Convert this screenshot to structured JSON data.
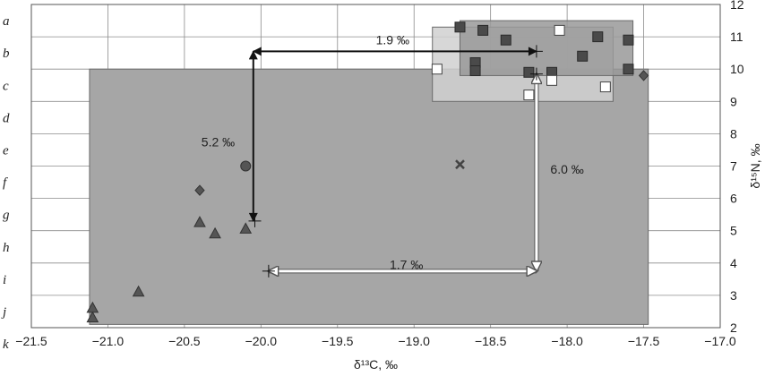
{
  "chart_data": {
    "type": "scatter",
    "title": "",
    "xlabel": "δ¹³C, ‰",
    "ylabel": "δ¹⁵N, ‰",
    "xlim": [
      -21.5,
      -17.0
    ],
    "ylim": [
      2,
      12
    ],
    "xticks": [
      "−21.5",
      "−21.0",
      "−20.5",
      "−20.0",
      "−19.5",
      "−19.0",
      "−18.5",
      "−18.0",
      "−17.5",
      "−17.0"
    ],
    "yticks": [
      "2",
      "3",
      "4",
      "5",
      "6",
      "7",
      "8",
      "9",
      "10",
      "11",
      "12"
    ],
    "grid": true,
    "row_labels": [
      "a",
      "b",
      "c",
      "d",
      "e",
      "f",
      "g",
      "h",
      "i",
      "j",
      "k"
    ],
    "ranges": [
      {
        "x": [
          -21.12,
          -17.47
        ],
        "y": [
          2.1,
          10.0
        ],
        "color": "#a6a6a6"
      },
      {
        "x": [
          -18.88,
          -17.7
        ],
        "y": [
          9.0,
          11.3
        ],
        "color": "#d0d0d0"
      },
      {
        "x": [
          -18.7,
          -17.57
        ],
        "y": [
          9.8,
          11.5
        ],
        "color": "#999999"
      }
    ],
    "series": [
      {
        "marker": "square-dark",
        "points": [
          [
            -18.7,
            11.3
          ],
          [
            -18.55,
            11.2
          ],
          [
            -18.4,
            10.9
          ],
          [
            -18.6,
            10.2
          ],
          [
            -18.6,
            9.95
          ],
          [
            -18.25,
            9.9
          ],
          [
            -18.1,
            9.9
          ],
          [
            -17.9,
            10.4
          ],
          [
            -17.8,
            11.0
          ],
          [
            -17.6,
            10.9
          ],
          [
            -17.6,
            10.0
          ]
        ]
      },
      {
        "marker": "square-open",
        "points": [
          [
            -18.85,
            10.0
          ],
          [
            -18.25,
            9.2
          ],
          [
            -18.1,
            9.65
          ],
          [
            -18.05,
            11.2
          ],
          [
            -17.75,
            9.45
          ]
        ]
      },
      {
        "marker": "triangle",
        "points": [
          [
            -21.1,
            2.6
          ],
          [
            -21.1,
            2.3
          ],
          [
            -20.8,
            3.1
          ],
          [
            -20.4,
            5.25
          ],
          [
            -20.3,
            4.9
          ],
          [
            -20.1,
            5.05
          ]
        ]
      },
      {
        "marker": "diamond",
        "points": [
          [
            -20.4,
            6.25
          ],
          [
            -17.5,
            9.8
          ]
        ]
      },
      {
        "marker": "circle",
        "points": [
          [
            -20.1,
            7.0
          ]
        ]
      },
      {
        "marker": "cross",
        "points": [
          [
            -18.7,
            7.05
          ]
        ]
      }
    ],
    "mean_marks": [
      [
        -20.04,
        5.3
      ],
      [
        -18.2,
        10.55
      ],
      [
        -18.2,
        9.85
      ],
      [
        -19.95,
        3.75
      ]
    ],
    "annotations": [
      {
        "text": "1.9 ‰",
        "x": -19.14,
        "y": 10.9
      },
      {
        "text": "5.2 ‰",
        "x": -20.28,
        "y": 7.75
      },
      {
        "text": "6.0 ‰",
        "x": -18.0,
        "y": 6.9
      },
      {
        "text": "1.7 ‰",
        "x": -19.05,
        "y": 3.95
      }
    ],
    "arrows": [
      {
        "style": "dark",
        "from": [
          -20.05,
          10.55
        ],
        "to": [
          -18.2,
          10.55
        ]
      },
      {
        "style": "dark",
        "from": [
          -20.05,
          10.55
        ],
        "to": [
          -20.05,
          5.3
        ]
      },
      {
        "style": "light",
        "from": [
          -18.2,
          9.85
        ],
        "to": [
          -18.2,
          3.75
        ]
      },
      {
        "style": "light",
        "from": [
          -19.95,
          3.75
        ],
        "to": [
          -18.2,
          3.75
        ]
      }
    ]
  }
}
